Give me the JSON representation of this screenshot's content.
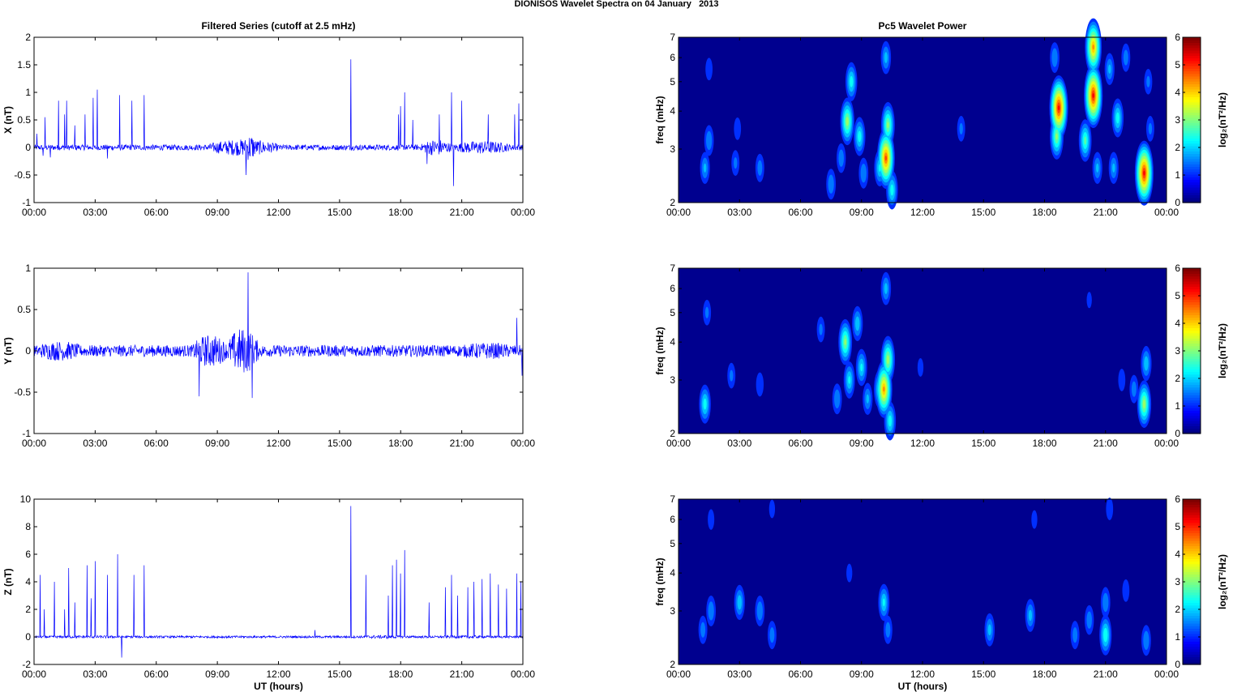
{
  "figure": {
    "title": "DIONISOS Wavelet Spectra on 04 January   2013"
  },
  "colors": {
    "trace": "#0000ff",
    "background": "#00008f",
    "axis": "#000000"
  },
  "chart_data": [
    {
      "type": "line",
      "title": "Filtered Series (cutoff at 2.5 mHz)",
      "xlabel": "",
      "ylabel": "X (nT)",
      "x_ticks": [
        "00:00",
        "03:00",
        "06:00",
        "09:00",
        "12:00",
        "15:00",
        "18:00",
        "21:00",
        "00:00"
      ],
      "xlim_hours": [
        0,
        24
      ],
      "ylim": [
        -1,
        2
      ],
      "y_ticks": [
        -1,
        -0.5,
        0,
        0.5,
        1,
        1.5,
        2
      ],
      "y_tick_labels": [
        "-1",
        "-0.5",
        "0",
        "0.5",
        "1",
        "1.5",
        "2"
      ],
      "noise_level": 0.05,
      "bursts": [
        [
          8.5,
          12.0,
          0.15
        ],
        [
          10.3,
          10.9,
          0.25
        ],
        [
          19.0,
          20.5,
          0.15
        ],
        [
          20.5,
          23.5,
          0.12
        ]
      ],
      "spikes": [
        [
          0.15,
          0.25
        ],
        [
          0.45,
          -0.15
        ],
        [
          0.55,
          0.55
        ],
        [
          0.8,
          -0.18
        ],
        [
          1.2,
          0.85
        ],
        [
          1.5,
          0.6
        ],
        [
          1.6,
          0.85
        ],
        [
          2.0,
          0.4
        ],
        [
          2.5,
          0.6
        ],
        [
          2.9,
          0.9
        ],
        [
          3.1,
          1.05
        ],
        [
          3.6,
          -0.2
        ],
        [
          4.2,
          0.95
        ],
        [
          4.8,
          0.85
        ],
        [
          5.4,
          0.95
        ],
        [
          10.4,
          -0.5
        ],
        [
          15.55,
          1.6
        ],
        [
          17.9,
          0.6
        ],
        [
          18.0,
          0.75
        ],
        [
          18.2,
          1.0
        ],
        [
          18.6,
          0.5
        ],
        [
          19.3,
          -0.3
        ],
        [
          19.9,
          0.6
        ],
        [
          20.5,
          1.0
        ],
        [
          20.6,
          -0.7
        ],
        [
          21.0,
          0.85
        ],
        [
          22.3,
          0.6
        ],
        [
          23.6,
          0.6
        ],
        [
          23.8,
          0.8
        ]
      ]
    },
    {
      "type": "heatmap",
      "title": "Pc5 Wavelet Power",
      "ylabel": "freq (mHz)",
      "xlabel": "",
      "x_ticks": [
        "00:00",
        "03:00",
        "06:00",
        "09:00",
        "12:00",
        "15:00",
        "18:00",
        "21:00",
        "00:00"
      ],
      "xlim_hours": [
        0,
        24
      ],
      "ylim_mhz": [
        2,
        7
      ],
      "y_scale": "log",
      "y_ticks": [
        2,
        3,
        4,
        5,
        6,
        7
      ],
      "colorbar": {
        "label": "log₂(nT²/Hz)",
        "range": [
          0,
          6
        ],
        "ticks": [
          0,
          1,
          2,
          3,
          4,
          5,
          6
        ],
        "colormap": "jet"
      },
      "blobs": [
        [
          1.3,
          2.6,
          1.5
        ],
        [
          1.5,
          3.2,
          1.4
        ],
        [
          1.5,
          5.5,
          0.8
        ],
        [
          2.8,
          2.7,
          1.0
        ],
        [
          2.9,
          3.5,
          0.8
        ],
        [
          4.0,
          2.6,
          1.2
        ],
        [
          7.5,
          2.3,
          1.4
        ],
        [
          8.0,
          2.8,
          1.3
        ],
        [
          8.3,
          3.7,
          3.2
        ],
        [
          8.5,
          5.0,
          2.2
        ],
        [
          8.9,
          3.3,
          2.2
        ],
        [
          9.1,
          2.5,
          1.4
        ],
        [
          9.9,
          2.6,
          2.0
        ],
        [
          10.2,
          2.8,
          5.0
        ],
        [
          10.3,
          3.6,
          3.0
        ],
        [
          10.2,
          6.0,
          1.6
        ],
        [
          10.5,
          2.2,
          2.2
        ],
        [
          13.9,
          3.5,
          1.0
        ],
        [
          18.7,
          4.1,
          5.5
        ],
        [
          18.6,
          3.3,
          3.0
        ],
        [
          18.5,
          6.0,
          1.4
        ],
        [
          20.0,
          3.2,
          2.6
        ],
        [
          20.4,
          4.5,
          5.5
        ],
        [
          20.4,
          6.5,
          4.5
        ],
        [
          20.6,
          2.6,
          1.5
        ],
        [
          21.2,
          5.5,
          1.5
        ],
        [
          21.4,
          2.6,
          1.5
        ],
        [
          21.6,
          3.8,
          2.2
        ],
        [
          22.0,
          6.0,
          1.2
        ],
        [
          22.9,
          2.5,
          5.5
        ],
        [
          23.1,
          5.0,
          1.0
        ],
        [
          23.2,
          3.5,
          1.0
        ]
      ]
    },
    {
      "type": "line",
      "title": "",
      "xlabel": "",
      "ylabel": "Y (nT)",
      "x_ticks": [
        "00:00",
        "03:00",
        "06:00",
        "09:00",
        "12:00",
        "15:00",
        "18:00",
        "21:00",
        "00:00"
      ],
      "xlim_hours": [
        0,
        24
      ],
      "ylim": [
        -1,
        1
      ],
      "y_ticks": [
        -1,
        -0.5,
        0,
        0.5,
        1
      ],
      "y_tick_labels": [
        "-1",
        "-0.5",
        "0",
        "0.5",
        "1"
      ],
      "noise_level": 0.07,
      "bursts": [
        [
          0.0,
          2.5,
          0.12
        ],
        [
          7.8,
          9.5,
          0.2
        ],
        [
          9.5,
          11.0,
          0.28
        ],
        [
          20.5,
          24.0,
          0.1
        ]
      ],
      "spikes": [
        [
          8.1,
          -0.55
        ],
        [
          10.5,
          0.95
        ],
        [
          10.7,
          -0.57
        ],
        [
          23.7,
          0.4
        ],
        [
          23.95,
          -0.3
        ]
      ]
    },
    {
      "type": "heatmap",
      "title": "",
      "ylabel": "freq (mHz)",
      "xlabel": "",
      "x_ticks": [
        "00:00",
        "03:00",
        "06:00",
        "09:00",
        "12:00",
        "15:00",
        "18:00",
        "21:00",
        "00:00"
      ],
      "xlim_hours": [
        0,
        24
      ],
      "ylim_mhz": [
        2,
        7
      ],
      "y_scale": "log",
      "y_ticks": [
        2,
        3,
        4,
        5,
        6,
        7
      ],
      "colorbar": {
        "label": "log₂(nT²/Hz)",
        "range": [
          0,
          6
        ],
        "ticks": [
          0,
          1,
          2,
          3,
          4,
          5,
          6
        ],
        "colormap": "jet"
      },
      "blobs": [
        [
          1.3,
          2.5,
          2.2
        ],
        [
          1.4,
          5.0,
          1.0
        ],
        [
          2.6,
          3.1,
          1.0
        ],
        [
          4.0,
          2.9,
          0.9
        ],
        [
          7.0,
          4.4,
          1.0
        ],
        [
          7.8,
          2.6,
          1.4
        ],
        [
          8.2,
          4.0,
          3.0
        ],
        [
          8.4,
          3.0,
          2.0
        ],
        [
          8.8,
          4.6,
          1.8
        ],
        [
          9.0,
          3.3,
          2.0
        ],
        [
          9.3,
          2.6,
          1.5
        ],
        [
          9.9,
          2.8,
          2.2
        ],
        [
          10.1,
          2.8,
          4.5
        ],
        [
          10.3,
          3.5,
          3.2
        ],
        [
          10.2,
          6.0,
          1.6
        ],
        [
          10.4,
          2.2,
          2.2
        ],
        [
          11.9,
          3.3,
          0.6
        ],
        [
          20.2,
          5.5,
          0.5
        ],
        [
          21.8,
          3.0,
          0.8
        ],
        [
          22.4,
          2.8,
          1.2
        ],
        [
          22.9,
          2.5,
          3.2
        ],
        [
          23.0,
          3.4,
          1.8
        ]
      ]
    },
    {
      "type": "line",
      "title": "",
      "xlabel": "UT (hours)",
      "ylabel": "Z (nT)",
      "x_ticks": [
        "00:00",
        "03:00",
        "06:00",
        "09:00",
        "12:00",
        "15:00",
        "18:00",
        "21:00",
        "00:00"
      ],
      "xlim_hours": [
        0,
        24
      ],
      "ylim": [
        -2,
        10
      ],
      "y_ticks": [
        -2,
        0,
        2,
        4,
        6,
        8,
        10
      ],
      "y_tick_labels": [
        "-2",
        "0",
        "2",
        "4",
        "6",
        "8",
        "10"
      ],
      "noise_level": 0.08,
      "bursts": [
        [
          0.0,
          5.5,
          0.1
        ],
        [
          15.6,
          18.5,
          0.12
        ],
        [
          18.5,
          24.0,
          0.1
        ]
      ],
      "spikes": [
        [
          0.3,
          4.5
        ],
        [
          0.5,
          2.0
        ],
        [
          1.0,
          4.0
        ],
        [
          1.5,
          2.0
        ],
        [
          1.7,
          5.0
        ],
        [
          2.0,
          2.5
        ],
        [
          2.6,
          5.2
        ],
        [
          2.8,
          2.8
        ],
        [
          3.0,
          5.5
        ],
        [
          3.6,
          4.5
        ],
        [
          4.1,
          6.0
        ],
        [
          4.3,
          -1.5
        ],
        [
          4.9,
          4.5
        ],
        [
          5.4,
          5.2
        ],
        [
          13.8,
          0.5
        ],
        [
          15.55,
          9.5
        ],
        [
          16.3,
          4.5
        ],
        [
          17.4,
          3.0
        ],
        [
          17.6,
          5.2
        ],
        [
          17.8,
          5.6
        ],
        [
          18.0,
          4.6
        ],
        [
          18.2,
          6.3
        ],
        [
          19.4,
          2.5
        ],
        [
          20.2,
          3.6
        ],
        [
          20.5,
          4.5
        ],
        [
          20.8,
          3.0
        ],
        [
          21.3,
          3.6
        ],
        [
          21.6,
          4.0
        ],
        [
          22.0,
          4.2
        ],
        [
          22.4,
          4.6
        ],
        [
          22.8,
          3.8
        ],
        [
          23.2,
          3.5
        ],
        [
          23.7,
          4.6
        ],
        [
          23.9,
          4.0
        ]
      ]
    },
    {
      "type": "heatmap",
      "title": "",
      "ylabel": "freq (mHz)",
      "xlabel": "UT (hours)",
      "x_ticks": [
        "00:00",
        "03:00",
        "06:00",
        "09:00",
        "12:00",
        "15:00",
        "18:00",
        "21:00",
        "00:00"
      ],
      "xlim_hours": [
        0,
        24
      ],
      "ylim_mhz": [
        2,
        7
      ],
      "y_scale": "log",
      "y_ticks": [
        2,
        3,
        4,
        5,
        6,
        7
      ],
      "colorbar": {
        "label": "log₂(nT²/Hz)",
        "range": [
          0,
          6
        ],
        "ticks": [
          0,
          1,
          2,
          3,
          4,
          5,
          6
        ],
        "colormap": "jet"
      },
      "blobs": [
        [
          1.2,
          2.6,
          1.2
        ],
        [
          1.6,
          3.0,
          1.4
        ],
        [
          1.6,
          6.0,
          0.7
        ],
        [
          3.0,
          3.2,
          1.8
        ],
        [
          4.0,
          3.0,
          1.4
        ],
        [
          4.6,
          2.5,
          1.2
        ],
        [
          4.6,
          6.5,
          0.6
        ],
        [
          8.4,
          4.0,
          0.6
        ],
        [
          10.1,
          3.2,
          2.0
        ],
        [
          10.3,
          2.6,
          1.2
        ],
        [
          15.3,
          2.6,
          1.6
        ],
        [
          17.3,
          2.9,
          1.6
        ],
        [
          17.5,
          6.0,
          0.6
        ],
        [
          19.5,
          2.5,
          1.2
        ],
        [
          20.2,
          2.8,
          1.3
        ],
        [
          21.0,
          2.5,
          2.4
        ],
        [
          21.0,
          3.2,
          1.4
        ],
        [
          21.2,
          6.5,
          0.8
        ],
        [
          22.0,
          3.5,
          0.8
        ],
        [
          23.0,
          2.4,
          1.4
        ]
      ]
    }
  ]
}
